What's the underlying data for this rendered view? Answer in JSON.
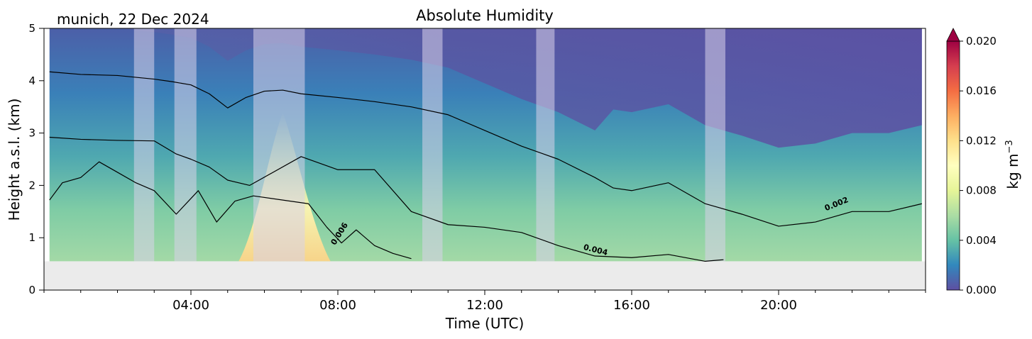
{
  "chart_data": {
    "type": "heatmap",
    "title": "Absolute Humidity",
    "subtitle": "munich, 22 Dec 2024",
    "xlabel": "Time (UTC)",
    "ylabel": "Height a.s.l. (km)",
    "xlim": [
      0,
      24
    ],
    "ylim": [
      0,
      5
    ],
    "x_ticks": [
      4,
      8,
      12,
      16,
      20
    ],
    "x_tick_labels": [
      "04:00",
      "08:00",
      "12:00",
      "16:00",
      "20:00"
    ],
    "y_ticks": [
      0,
      1,
      2,
      3,
      4,
      5
    ],
    "y_tick_labels": [
      "0",
      "1",
      "2",
      "3",
      "4",
      "5"
    ],
    "no_data_below_km": 0.55,
    "grid": false,
    "colorbar": {
      "label": "kg m",
      "label_superscript": "−3",
      "min": 0.0,
      "max": 0.02,
      "extend": "max",
      "ticks": [
        0.0,
        0.004,
        0.008,
        0.012,
        0.016,
        0.02
      ],
      "tick_labels": [
        "0.000",
        "0.004",
        "0.008",
        "0.012",
        "0.016",
        "0.020"
      ],
      "colors": [
        "#5e4fa2",
        "#3288bd",
        "#66c2a5",
        "#abdda4",
        "#e6f598",
        "#ffffbf",
        "#fee08b",
        "#fdae61",
        "#f46d43",
        "#d53e4f",
        "#9e0142"
      ]
    },
    "contour_levels": [
      {
        "level": 0.002,
        "label": "0.002"
      },
      {
        "level": 0.004,
        "label": "0.004"
      },
      {
        "level": 0.006,
        "label": "0.006"
      }
    ],
    "contours": [
      {
        "level": 0.002,
        "x": [
          0.15,
          1,
          2,
          3,
          3.5,
          4,
          4.5,
          5,
          5.5,
          6,
          6.5,
          7,
          8,
          9,
          10,
          11,
          12,
          13,
          14,
          15,
          15.5,
          16,
          17,
          18,
          19,
          20,
          21,
          22,
          23,
          23.9
        ],
        "y": [
          4.17,
          4.12,
          4.1,
          4.03,
          3.98,
          3.92,
          3.75,
          3.48,
          3.68,
          3.8,
          3.82,
          3.75,
          3.68,
          3.6,
          3.5,
          3.35,
          3.05,
          2.75,
          2.5,
          2.15,
          1.95,
          1.9,
          2.05,
          1.65,
          1.45,
          1.22,
          1.3,
          1.5,
          1.5,
          1.65
        ]
      },
      {
        "level": 0.004,
        "x": [
          0.15,
          1,
          2,
          3,
          3.6,
          4,
          4.5,
          5,
          5.6,
          7,
          8,
          9,
          10,
          11,
          12,
          13,
          14,
          15,
          16,
          17,
          18,
          18.5
        ],
        "y": [
          2.92,
          2.88,
          2.86,
          2.85,
          2.6,
          2.5,
          2.35,
          2.1,
          2.0,
          2.55,
          2.3,
          2.3,
          1.5,
          1.25,
          1.2,
          1.1,
          0.85,
          0.65,
          0.62,
          0.68,
          0.55,
          0.58
        ]
      },
      {
        "level": 0.006,
        "x": [
          0.15,
          0.5,
          1,
          1.5,
          2,
          2.5,
          3,
          3.6,
          4.2,
          4.7,
          5.2,
          5.7,
          7.2,
          7.7,
          8.1,
          8.5,
          9,
          9.5,
          10
        ],
        "y": [
          1.72,
          2.05,
          2.15,
          2.45,
          2.25,
          2.05,
          1.9,
          1.45,
          1.9,
          1.3,
          1.7,
          1.8,
          1.65,
          1.2,
          0.9,
          1.15,
          0.85,
          0.7,
          0.6
        ]
      }
    ],
    "contour_label_positions": [
      {
        "label": "0.002",
        "x": 21.6,
        "y": 1.6,
        "angle": -22
      },
      {
        "label": "0.004",
        "x": 15.0,
        "y": 0.72,
        "angle": 14
      },
      {
        "label": "0.006",
        "x": 8.1,
        "y": 1.05,
        "angle": -58
      }
    ],
    "masked_time_intervals": [
      [
        2.45,
        3.0
      ],
      [
        3.55,
        4.15
      ],
      [
        5.7,
        7.1
      ],
      [
        10.3,
        10.85
      ],
      [
        13.4,
        13.9
      ],
      [
        18.0,
        18.55
      ]
    ]
  }
}
